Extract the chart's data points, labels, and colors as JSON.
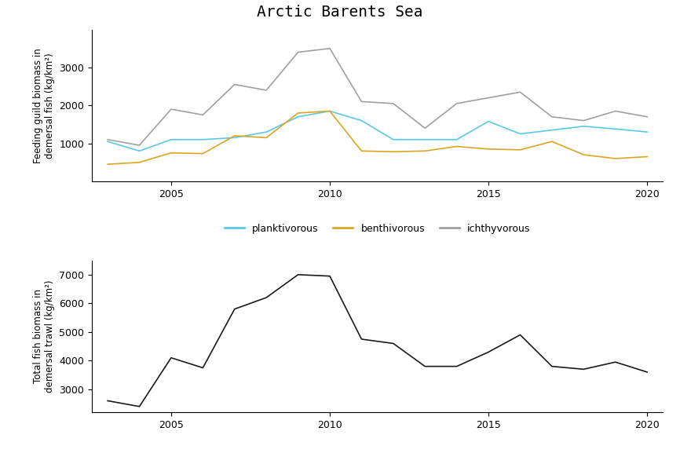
{
  "title": "Arctic Barents Sea",
  "title_bg_color": "#FF00FF",
  "title_color": "black",
  "title_fontsize": 14,
  "years": [
    2003,
    2004,
    2005,
    2006,
    2007,
    2008,
    2009,
    2010,
    2011,
    2012,
    2013,
    2014,
    2015,
    2016,
    2017,
    2018,
    2019,
    2020
  ],
  "planktivorous": [
    1050,
    800,
    1100,
    1100,
    1150,
    1300,
    1700,
    1850,
    1600,
    1100,
    1100,
    1100,
    1580,
    1250,
    1350,
    1450,
    1380,
    1300
  ],
  "planktivorous_color": "#5BC8E8",
  "benthivorous": [
    450,
    500,
    750,
    730,
    1200,
    1150,
    1800,
    1850,
    800,
    780,
    800,
    920,
    850,
    830,
    1050,
    700,
    600,
    650
  ],
  "benthivorous_color": "#DAA520",
  "ichthyvorous": [
    1100,
    950,
    1900,
    1750,
    2550,
    2400,
    3400,
    3500,
    2100,
    2050,
    1400,
    2050,
    2200,
    2350,
    1700,
    1600,
    1850,
    1700
  ],
  "ichthyvorous_color": "#A0A0A0",
  "total_years": [
    2003,
    2004,
    2005,
    2006,
    2007,
    2008,
    2009,
    2010,
    2011,
    2012,
    2013,
    2014,
    2015,
    2016,
    2017,
    2018,
    2019,
    2020
  ],
  "total": [
    2600,
    2400,
    4100,
    3750,
    5800,
    6200,
    7000,
    6950,
    4750,
    4600,
    3800,
    3800,
    4300,
    4900,
    3800,
    3700,
    3950,
    3600
  ],
  "total_color": "#1a1a1a",
  "upper_ylabel": "Feeding guild biomass in\ndemersal fish (kg/km²)",
  "lower_ylabel": "Total fish biomass in\ndemersal trawl (kg/km²)",
  "upper_ylim": [
    0,
    4000
  ],
  "upper_yticks": [
    1000,
    2000,
    3000
  ],
  "lower_ylim": [
    2200,
    7500
  ],
  "lower_yticks": [
    3000,
    4000,
    5000,
    6000,
    7000
  ],
  "xticks": [
    2005,
    2010,
    2015,
    2020
  ],
  "legend_labels": [
    "planktivorous",
    "benthivorous",
    "ichthyvorous"
  ],
  "legend_colors": [
    "#5BC8E8",
    "#DAA520",
    "#A0A0A0"
  ],
  "line_width": 1.2
}
